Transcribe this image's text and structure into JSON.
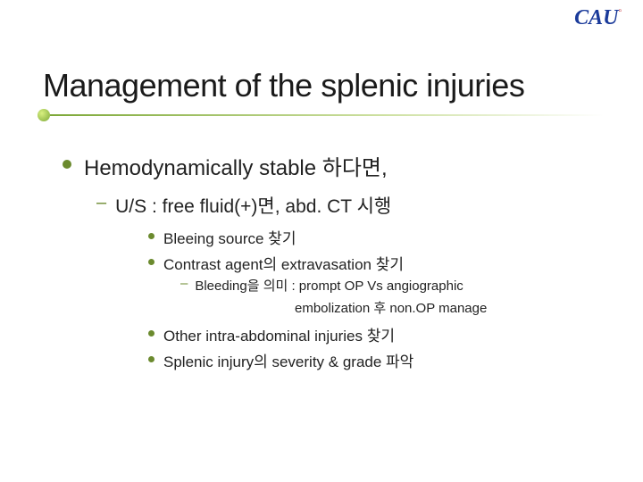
{
  "logo": {
    "text": "CAU",
    "square": "▫"
  },
  "title": "Management of the splenic injuries",
  "lvl1": {
    "text": "Hemodynamically stable 하다면,"
  },
  "lvl2": {
    "text": "U/S  : free fluid(+)면, abd. CT 시행"
  },
  "lvl3": {
    "a": "Bleeing source 찾기",
    "b": "Contrast agent의 extravasation 찾기",
    "c": "Other intra-abdominal injuries 찾기",
    "d": "Splenic injury의 severity & grade 파악"
  },
  "lvl4": {
    "line1": "Bleeding을 의미 : prompt OP Vs angiographic",
    "line2": "embolization 후 non.OP manage"
  },
  "colors": {
    "accent": "#6b8a2e",
    "logo": "#1a3a9a",
    "logo_accent": "#c0282e",
    "bg": "#ffffff",
    "text": "#1a1a1a"
  },
  "fontsizes": {
    "title": 36,
    "lvl1": 24,
    "lvl2": 21,
    "lvl3": 17,
    "lvl4": 15
  }
}
